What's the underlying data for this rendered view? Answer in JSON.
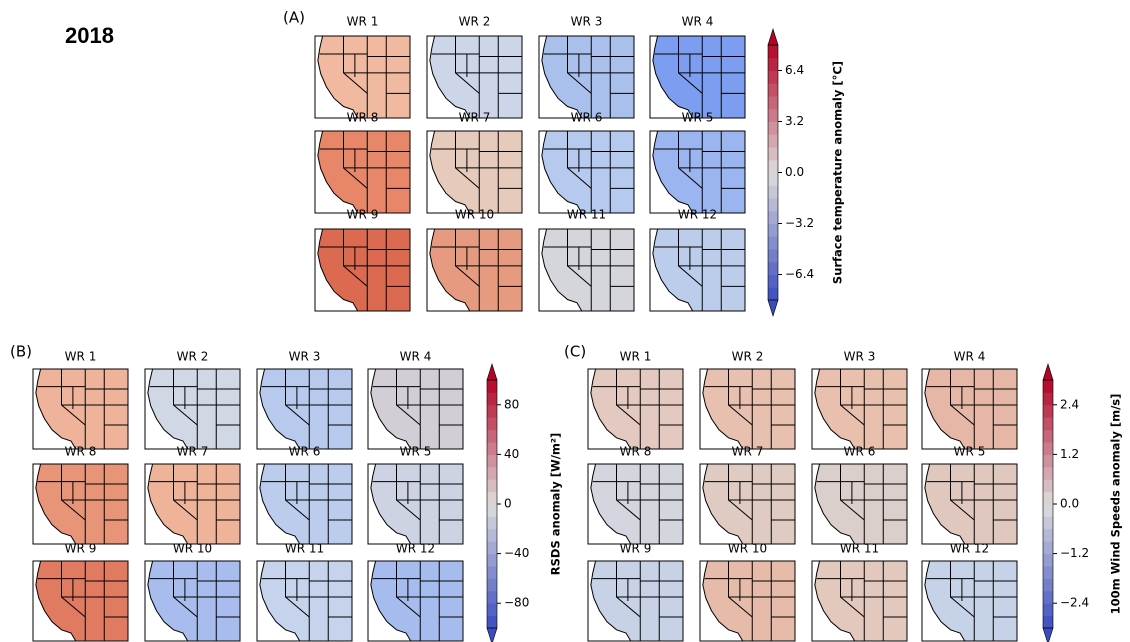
{
  "title": "2018",
  "panels": [
    {
      "label": "(A)",
      "maps": [
        {
          "title": "WR 1",
          "color": "#f0b9a0"
        },
        {
          "title": "WR 2",
          "color": "#ccd6e8"
        },
        {
          "title": "WR 3",
          "color": "#a9c0ec"
        },
        {
          "title": "WR 4",
          "color": "#7d9ef0"
        },
        {
          "title": "WR 8",
          "color": "#e8866a"
        },
        {
          "title": "WR 7",
          "color": "#e6cabb"
        },
        {
          "title": "WR 6",
          "color": "#b6c9ee"
        },
        {
          "title": "WR 5",
          "color": "#9bb5f0"
        },
        {
          "title": "WR 9",
          "color": "#db6a50"
        },
        {
          "title": "WR 10",
          "color": "#e69a80"
        },
        {
          "title": "WR 11",
          "color": "#d5d6db"
        },
        {
          "title": "WR 12",
          "color": "#bccdec"
        }
      ],
      "colorbar": {
        "label": "Surface temperature anomaly [°C]",
        "lim": [
          -8,
          8
        ],
        "ticks": [
          {
            "value": -6.4,
            "label": "−6.4"
          },
          {
            "value": -3.2,
            "label": "−3.2"
          },
          {
            "value": 0,
            "label": "0.0"
          },
          3.2,
          6.4
        ]
      }
    },
    {
      "label": "(B)",
      "maps": [
        {
          "title": "WR 1",
          "color": "#eeb39a"
        },
        {
          "title": "WR 2",
          "color": "#d0d8e6"
        },
        {
          "title": "WR 3",
          "color": "#b8c9ee"
        },
        {
          "title": "WR 4",
          "color": "#d3cdd5"
        },
        {
          "title": "WR 8",
          "color": "#e89478"
        },
        {
          "title": "WR 7",
          "color": "#eeb398"
        },
        {
          "title": "WR 6",
          "color": "#bccced"
        },
        {
          "title": "WR 5",
          "color": "#cdd3e3"
        },
        {
          "title": "WR 9",
          "color": "#e07a60"
        },
        {
          "title": "WR 10",
          "color": "#a8bdee"
        },
        {
          "title": "WR 11",
          "color": "#c6d3ec"
        },
        {
          "title": "WR 12",
          "color": "#a7bcee"
        }
      ],
      "colorbar": {
        "label": "RSDS anomaly [W/m²]",
        "lim": [
          -100,
          100
        ],
        "ticks": [
          {
            "value": -80,
            "label": "−80"
          },
          {
            "value": -40,
            "label": "−40"
          },
          0,
          40,
          80
        ]
      }
    },
    {
      "label": "(C)",
      "maps": [
        {
          "title": "WR 1",
          "color": "#e3c9c0"
        },
        {
          "title": "WR 2",
          "color": "#e8c0b0"
        },
        {
          "title": "WR 3",
          "color": "#e9bfae"
        },
        {
          "title": "WR 4",
          "color": "#e6b7a6"
        },
        {
          "title": "WR 8",
          "color": "#d3d6de"
        },
        {
          "title": "WR 7",
          "color": "#e0cbc3"
        },
        {
          "title": "WR 6",
          "color": "#dbcfcc"
        },
        {
          "title": "WR 5",
          "color": "#e0c8be"
        },
        {
          "title": "WR 9",
          "color": "#c8d2e6"
        },
        {
          "title": "WR 10",
          "color": "#e6bba9"
        },
        {
          "title": "WR 11",
          "color": "#e3c8bd"
        },
        {
          "title": "WR 12",
          "color": "#c6d2e8"
        }
      ],
      "colorbar": {
        "label": "100m Wind Speeds anomaly [m/s]",
        "lim": [
          -3,
          3
        ],
        "ticks": [
          {
            "value": -2.4,
            "label": "−2.4"
          },
          {
            "value": -1.2,
            "label": "−1.2"
          },
          {
            "value": 0,
            "label": "0.0"
          },
          1.2,
          2.4
        ]
      }
    }
  ]
}
